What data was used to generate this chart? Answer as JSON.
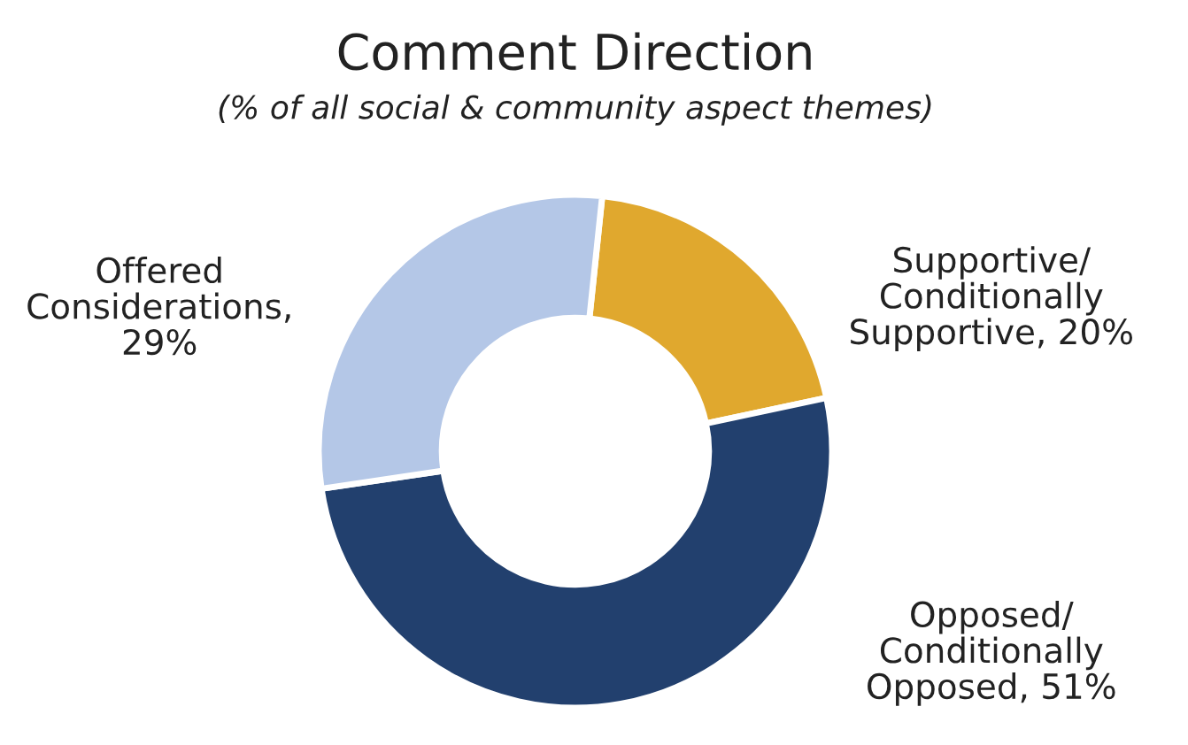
{
  "chart_data": {
    "type": "donut",
    "title": "Comment Direction",
    "subtitle": "(% of all social & community aspect themes)",
    "categories": [
      "Supportive/\nConditionally\nSupportive, 20%",
      "Opposed/\nConditionally\nOpposed, 51%",
      "Offered\nConsiderations,\n29%"
    ],
    "values": [
      20,
      51,
      29
    ],
    "colors": [
      "#e0a82e",
      "#22406e",
      "#b4c7e7"
    ],
    "legend": false
  }
}
